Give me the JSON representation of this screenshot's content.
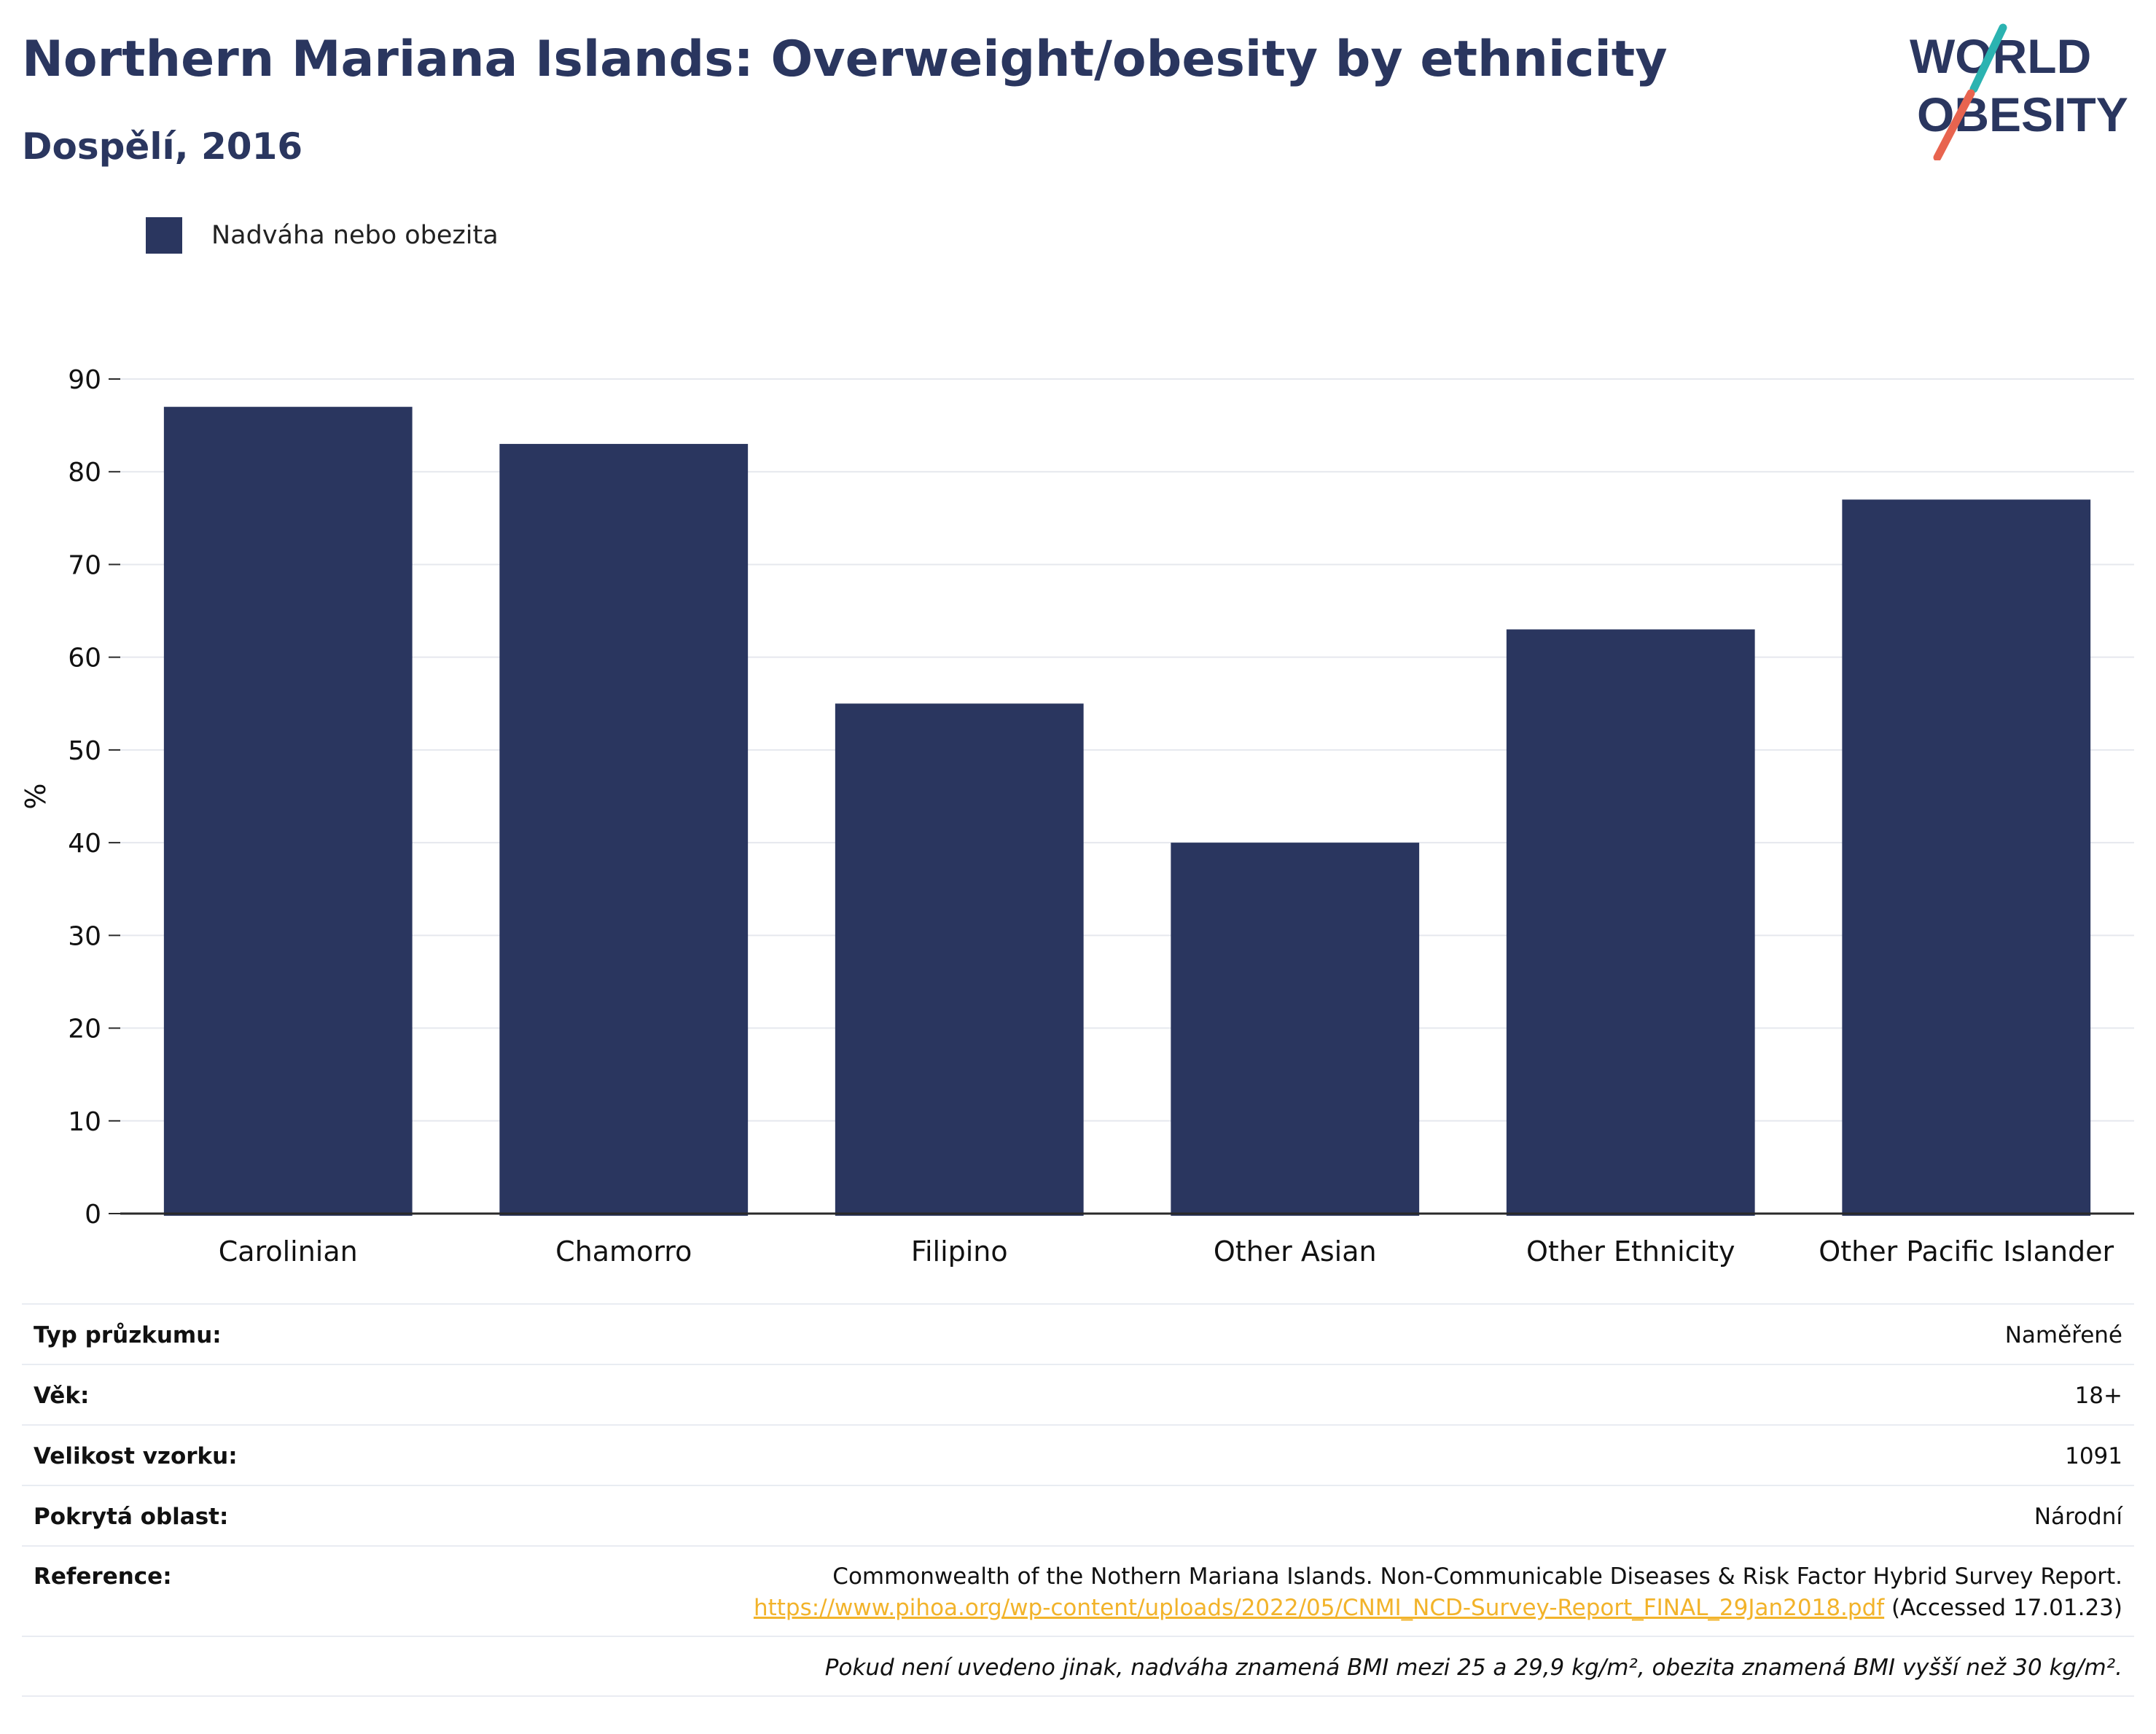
{
  "header": {
    "title": "Northern Mariana Islands: Overweight/obesity by ethnicity",
    "subtitle": "Dospělí, 2016"
  },
  "logo": {
    "line1": "WORLD",
    "line2": "OBESITY"
  },
  "legend": {
    "label": "Nadváha nebo obezita"
  },
  "colors": {
    "bar": "#2a365f",
    "title": "#2a365f",
    "link": "#f2b32a",
    "grid": "#e6e8ee"
  },
  "chart_data": {
    "type": "bar",
    "title": "Northern Mariana Islands: Overweight/obesity by ethnicity",
    "subtitle": "Dospělí, 2016",
    "categories": [
      "Carolinian",
      "Chamorro",
      "Filipino",
      "Other Asian",
      "Other Ethnicity",
      "Other Pacific Islander"
    ],
    "series": [
      {
        "name": "Nadváha nebo obezita",
        "values": [
          87,
          83,
          55,
          40,
          63,
          77
        ]
      }
    ],
    "ylabel": "%",
    "xlabel": "",
    "ylim": [
      0,
      90
    ],
    "yticks": [
      0,
      10,
      20,
      30,
      40,
      50,
      60,
      70,
      80,
      90
    ],
    "grid": true,
    "legend_position": "top-left"
  },
  "meta": {
    "survey_type": {
      "label": "Typ průzkumu:",
      "value": "Naměřené"
    },
    "age": {
      "label": "Věk:",
      "value": "18+"
    },
    "sample_size": {
      "label": "Velikost vzorku:",
      "value": "1091"
    },
    "area": {
      "label": "Pokrytá oblast:",
      "value": "Národní"
    },
    "reference": {
      "label": "Reference:",
      "text": "Commonwealth of the Nothern Mariana Islands. Non-Communicable Diseases & Risk Factor Hybrid Survey Report.",
      "url": "https://www.pihoa.org/wp-content/uploads/2022/05/CNMI_NCD-Survey-Report_FINAL_29Jan2018.pdf",
      "accessed": " (Accessed 17.01.23)"
    },
    "note": "Pokud není uvedeno jinak, nadváha znamená BMI mezi 25 a 29,9 kg/m², obezita znamená BMI vyšší než 30 kg/m²."
  }
}
